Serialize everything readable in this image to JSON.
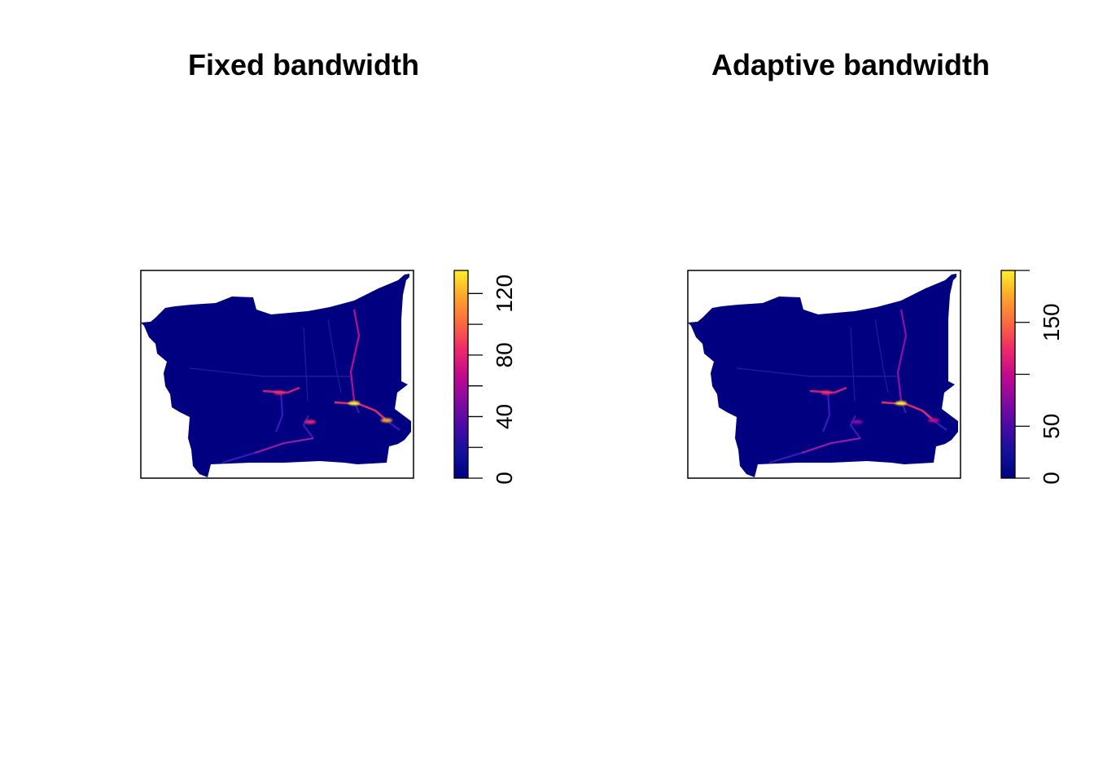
{
  "colors": {
    "background_fill": "#000080",
    "scale": [
      "#000080",
      "#1a0a9e",
      "#4a0aa8",
      "#8a0aa0",
      "#c40a8c",
      "#ee2a6a",
      "#fb6a40",
      "#fda82a",
      "#fef02a"
    ]
  },
  "chart_data": [
    {
      "type": "heatmap",
      "title": "Fixed bandwidth",
      "legend": "right",
      "zlim": [
        0,
        135
      ],
      "colorbar_ticks": [
        0,
        20,
        40,
        60,
        80,
        100,
        120
      ],
      "colorbar_labels": [
        "0",
        "40",
        "80",
        "120"
      ],
      "hotspots": [
        {
          "name": "centre-west segment",
          "value": 90
        },
        {
          "name": "centre-east junction",
          "value": 130
        },
        {
          "name": "south-east segment",
          "value": 110
        },
        {
          "name": "south-centre segment",
          "value": 80
        }
      ]
    },
    {
      "type": "heatmap",
      "title": "Adaptive bandwidth",
      "legend": "right",
      "zlim": [
        0,
        200
      ],
      "colorbar_ticks": [
        0,
        50,
        100,
        150,
        200
      ],
      "colorbar_labels": [
        "0",
        "50",
        "150"
      ],
      "hotspots": [
        {
          "name": "centre-west segment",
          "value": 120
        },
        {
          "name": "centre-east junction",
          "value": 190
        },
        {
          "name": "south-east segment",
          "value": 90
        },
        {
          "name": "south-centre segment",
          "value": 70
        }
      ]
    }
  ]
}
